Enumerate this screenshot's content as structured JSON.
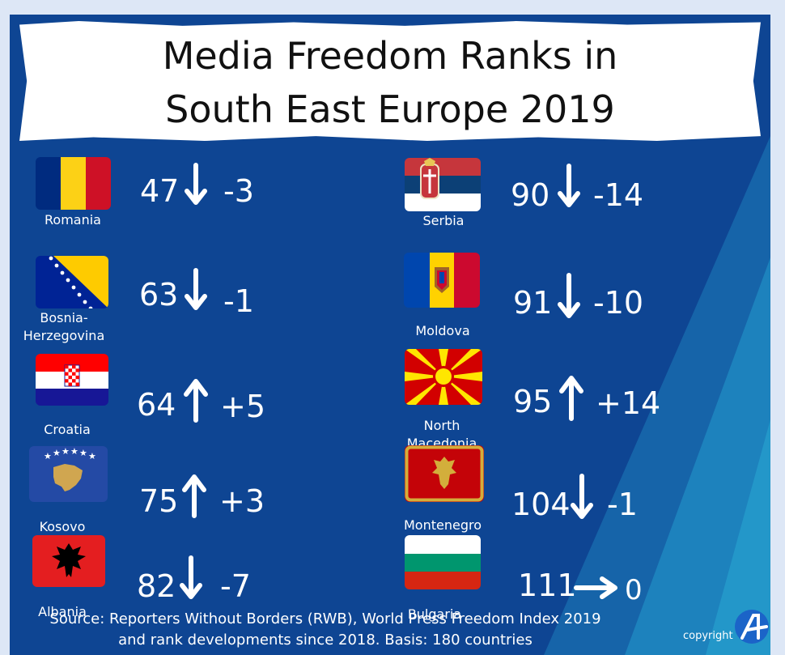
{
  "title": {
    "line1": "Media Freedom Ranks in",
    "line2": "South East Europe 2019"
  },
  "entries": [
    {
      "country": "Romania",
      "rank": "47",
      "direction": "down",
      "change": "-3",
      "flag": "romania-flag-icon"
    },
    {
      "country": "Bosnia-Herzegovina",
      "rank": "63",
      "direction": "down",
      "change": "-1",
      "flag": "bosnia-herzegovina-flag-icon"
    },
    {
      "country": "Croatia",
      "rank": "64",
      "direction": "up",
      "change": "+5",
      "flag": "croatia-flag-icon"
    },
    {
      "country": "Kosovo",
      "rank": "75",
      "direction": "up",
      "change": "+3",
      "flag": "kosovo-flag-icon"
    },
    {
      "country": "Albania",
      "rank": "82",
      "direction": "down",
      "change": "-7",
      "flag": "albania-flag-icon"
    },
    {
      "country": "Serbia",
      "rank": "90",
      "direction": "down",
      "change": "-14",
      "flag": "serbia-flag-icon"
    },
    {
      "country": "Moldova",
      "rank": "91",
      "direction": "down",
      "change": "-10",
      "flag": "moldova-flag-icon"
    },
    {
      "country": "North Macedonia",
      "rank": "95",
      "direction": "up",
      "change": "+14",
      "flag": "north-macedonia-flag-icon"
    },
    {
      "country": "Montenegro",
      "rank": "104",
      "direction": "down",
      "change": "-1",
      "flag": "montenegro-flag-icon"
    },
    {
      "country": "Bulgaria",
      "rank": "111",
      "direction": "right",
      "change": "0",
      "flag": "bulgaria-flag-icon"
    }
  ],
  "source": {
    "line1": "Source: Reporters Without Borders (RWB), World Press Freedom Index 2019",
    "line2": "and rank developments since 2018. Basis: 180 countries"
  },
  "copyright": "copyright",
  "colors": {
    "background": "#0e4593",
    "accent_stripe": "#1f86c1",
    "text": "#ffffff"
  }
}
